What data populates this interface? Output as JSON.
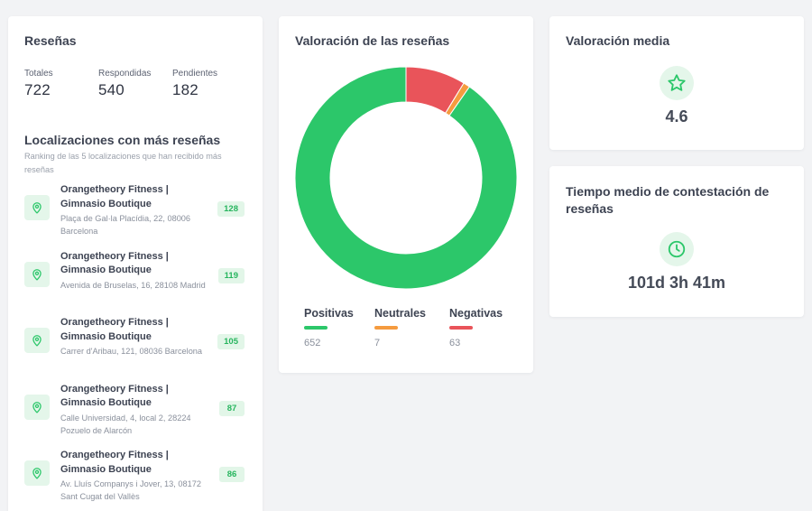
{
  "reviews_card": {
    "title": "Reseñas",
    "stats": [
      {
        "label": "Totales",
        "value": "722"
      },
      {
        "label": "Respondidas",
        "value": "540"
      },
      {
        "label": "Pendientes",
        "value": "182"
      }
    ],
    "ranking_title": "Localizaciones con más reseñas",
    "ranking_subtitle": "Ranking de las 5 localizaciones que han recibido más reseñas",
    "locations": [
      {
        "name": "Orangetheory Fitness | Gimnasio Boutique",
        "address": "Plaça de Gal·la Placídia, 22, 08006 Barcelona",
        "count": "128",
        "icon": "map-pin-icon"
      },
      {
        "name": "Orangetheory Fitness | Gimnasio Boutique",
        "address": "Avenida de Bruselas, 16, 28108 Madrid",
        "count": "119",
        "icon": "map-pin-icon"
      },
      {
        "name": "Orangetheory Fitness | Gimnasio Boutique",
        "address": "Carrer d'Aribau, 121, 08036 Barcelona",
        "count": "105",
        "icon": "map-pin-icon"
      },
      {
        "name": "Orangetheory Fitness | Gimnasio Boutique",
        "address": "Calle Universidad, 4, local 2, 28224 Pozuelo de Alarcón",
        "count": "87",
        "icon": "map-pin-icon"
      },
      {
        "name": "Orangetheory Fitness | Gimnasio Boutique",
        "address": "Av. Lluís Companys i Jover, 13, 08172 Sant Cugat del Vallès",
        "count": "86",
        "icon": "map-pin-icon"
      }
    ]
  },
  "rating_chart_card": {
    "title": "Valoración de las reseñas"
  },
  "chart_data": {
    "type": "pie",
    "donut": true,
    "categories": [
      "Positivas",
      "Neutrales",
      "Negativas"
    ],
    "values": [
      652,
      7,
      63
    ],
    "colors": [
      "#2cc76a",
      "#f59b3f",
      "#e9545a"
    ],
    "legend_position": "bottom"
  },
  "avg_rating_card": {
    "title": "Valoración media",
    "icon": "star-icon",
    "value": "4.6"
  },
  "response_time_card": {
    "title": "Tiempo medio de contestación de reseñas",
    "icon": "clock-icon",
    "value": "101d 3h 41m"
  },
  "colors": {
    "accent_green": "#2cc76a",
    "accent_green_light": "#e4f6ea",
    "neutral_orange": "#f59b3f",
    "negative_red": "#e9545a",
    "background": "#f2f3f5"
  }
}
